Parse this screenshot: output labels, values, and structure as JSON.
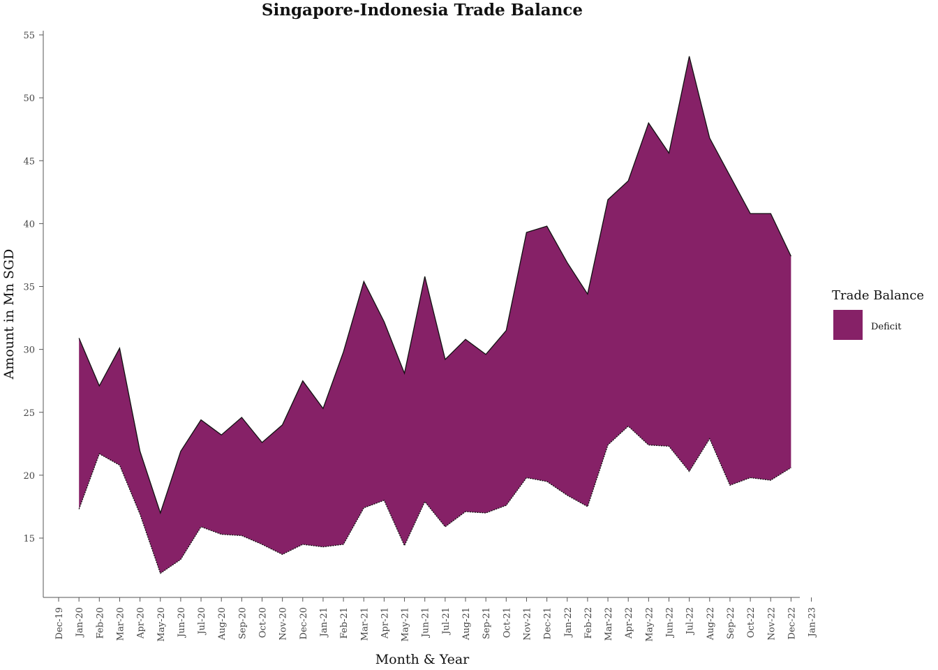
{
  "chart_data": {
    "type": "area",
    "title": "Singapore-Indonesia Trade Balance",
    "xlabel": "Month & Year",
    "ylabel": "Amount in Mn SGD",
    "ylim": [
      10,
      55.5
    ],
    "yticks": [
      15,
      20,
      25,
      30,
      35,
      40,
      45,
      50,
      55
    ],
    "xtick_labels": [
      "Dec-19",
      "Jan-20",
      "Feb-20",
      "Mar-20",
      "Apr-20",
      "May-20",
      "Jun-20",
      "Jul-20",
      "Aug-20",
      "Sep-20",
      "Oct-20",
      "Nov-20",
      "Dec-20",
      "Jan-21",
      "Feb-21",
      "Mar-21",
      "Apr-21",
      "May-21",
      "Jun-21",
      "Jul-21",
      "Aug-21",
      "Sep-21",
      "Oct-21",
      "Nov-21",
      "Dec-21",
      "Jan-22",
      "Feb-22",
      "Mar-22",
      "Apr-22",
      "May-22",
      "Jun-22",
      "Jul-22",
      "Aug-22",
      "Sep-22",
      "Oct-22",
      "Nov-22",
      "Dec-22",
      "Jan-23"
    ],
    "categories": [
      "Jan-20",
      "Feb-20",
      "Mar-20",
      "Apr-20",
      "May-20",
      "Jun-20",
      "Jul-20",
      "Aug-20",
      "Sep-20",
      "Oct-20",
      "Nov-20",
      "Dec-20",
      "Jan-21",
      "Feb-21",
      "Mar-21",
      "Apr-21",
      "May-21",
      "Jun-21",
      "Jul-21",
      "Aug-21",
      "Sep-21",
      "Oct-21",
      "Nov-21",
      "Dec-21",
      "Jan-22",
      "Feb-22",
      "Mar-22",
      "Apr-22",
      "May-22",
      "Jun-22",
      "Jul-22",
      "Aug-22",
      "Sep-22",
      "Oct-22",
      "Nov-22",
      "Dec-22"
    ],
    "series": [
      {
        "name": "Deficit",
        "color": "#862167",
        "upper": [
          30.9,
          27.1,
          30.1,
          21.9,
          17.0,
          21.9,
          24.4,
          23.2,
          24.6,
          22.6,
          24.0,
          27.5,
          25.3,
          29.8,
          35.4,
          32.2,
          28.1,
          35.8,
          29.2,
          30.8,
          29.6,
          31.5,
          39.3,
          39.8,
          36.9,
          34.4,
          41.9,
          43.4,
          48.0,
          45.6,
          53.3,
          46.8,
          43.8,
          40.8,
          40.8,
          37.4
        ],
        "lower": [
          17.3,
          21.7,
          20.8,
          16.9,
          12.2,
          13.3,
          15.9,
          15.3,
          15.2,
          14.5,
          13.7,
          14.5,
          14.3,
          14.5,
          17.4,
          18.0,
          14.4,
          17.9,
          15.9,
          17.1,
          17.0,
          17.6,
          19.8,
          19.5,
          18.4,
          17.5,
          22.4,
          23.9,
          22.4,
          22.3,
          20.3,
          22.9,
          19.2,
          19.8,
          19.6,
          20.6
        ]
      }
    ],
    "legend": {
      "title": "Trade Balance",
      "position": "right",
      "entries": [
        "Deficit"
      ]
    },
    "grid": false
  }
}
